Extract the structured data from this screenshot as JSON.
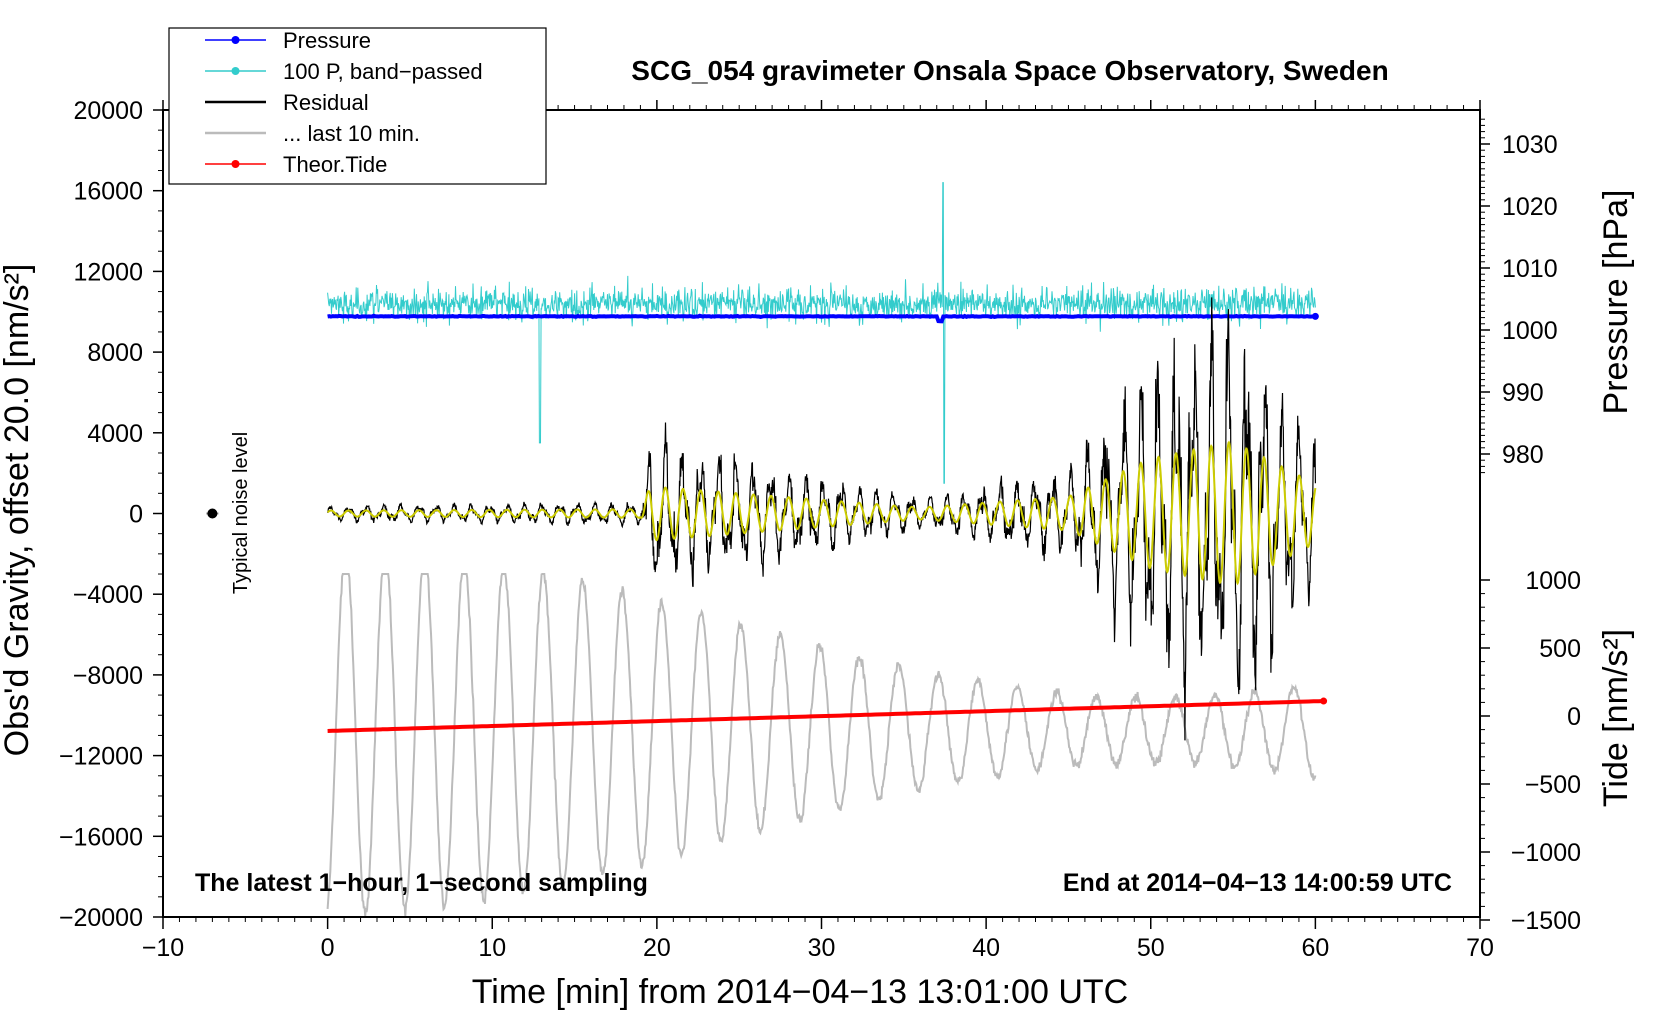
{
  "chart_data": {
    "type": "line",
    "title": "SCG_054 gravimeter Onsala Space Observatory, Sweden",
    "xlabel": "Time [min] from 2014−04−13 13:01:00 UTC",
    "ylabel_left": "Obs'd Gravity, offset 20.0 [nm/s²]",
    "ylabel_right_top": "Pressure [hPa]",
    "ylabel_right_bottom": "Tide [nm/s²]",
    "xlim": [
      -10,
      70
    ],
    "ylim_left": [
      -20000,
      20000
    ],
    "x_ticks": [
      -10,
      0,
      10,
      20,
      30,
      40,
      50,
      60,
      70
    ],
    "x_tick_labels": [
      "−10",
      "0",
      "10",
      "20",
      "30",
      "40",
      "50",
      "60",
      "70"
    ],
    "y_left_ticks": [
      20000,
      16000,
      12000,
      8000,
      4000,
      0,
      -4000,
      -8000,
      -12000,
      -16000,
      -20000
    ],
    "y_left_tick_labels": [
      "20000",
      "16000",
      "12000",
      "8000",
      "4000",
      "0",
      "−4000",
      "−8000",
      "−12000",
      "−16000",
      "−20000"
    ],
    "pressure_axis": {
      "ticks": [
        1030,
        1020,
        1010,
        1000,
        990,
        980
      ],
      "tick_labels": [
        "1030",
        "1020",
        "1010",
        "1000",
        "990",
        "980"
      ]
    },
    "tide_axis": {
      "ticks": [
        1000,
        500,
        0,
        -500,
        -1000,
        -1500
      ],
      "tick_labels": [
        "1000",
        "500",
        "0",
        "−500",
        "−1000",
        "−1500"
      ]
    },
    "legend": [
      {
        "label": "Pressure",
        "color": "#0000ff",
        "marker": true
      },
      {
        "label": "100 P, band−passed",
        "color": "#33cccc",
        "marker": true
      },
      {
        "label": "Residual",
        "color": "#000000",
        "marker": false
      },
      {
        "label": "... last 10 min.",
        "color": "#bbbbbb",
        "marker": false
      },
      {
        "label": "Theor.Tide",
        "color": "#ff0000",
        "marker": true
      }
    ],
    "annotations": {
      "noise": "Typical noise level",
      "footer_left": "The latest 1−hour, 1−second sampling",
      "footer_right": "End at 2014−04−13 14:00:59 UTC"
    },
    "series": [
      {
        "name": "Pressure",
        "color": "#0000ff",
        "unit": "hPa",
        "x_range": [
          0,
          60
        ],
        "approx_value": 1002.2
      },
      {
        "name": "100 P, band−passed",
        "color": "#33cccc",
        "x_range": [
          0,
          60
        ],
        "baseline": 10400,
        "typical_amplitude": 900,
        "spikes": [
          {
            "x": 12.9,
            "min": 3500
          },
          {
            "x": 37.4,
            "max": 16400,
            "min": 1500
          }
        ]
      },
      {
        "name": "Residual",
        "color": "#000000",
        "x_range": [
          0,
          60
        ],
        "baseline": 0,
        "envelope_points": [
          [
            0,
            350
          ],
          [
            19,
            500
          ],
          [
            19.6,
            3200
          ],
          [
            36,
            700
          ],
          [
            45,
            2000
          ],
          [
            50,
            6500
          ],
          [
            55,
            8500
          ],
          [
            60,
            3500
          ]
        ]
      },
      {
        "name": "Residual (filtered)",
        "color": "#cccc00",
        "x_range": [
          0,
          60
        ],
        "baseline": 0
      },
      {
        "name": "... last 10 min.",
        "color": "#bbbbbb",
        "x_range": [
          0,
          60
        ],
        "oscillation_range": [
          -20000,
          -3500
        ],
        "cycles": 25
      },
      {
        "name": "Theor.Tide",
        "color": "#ff0000",
        "unit": "nm/s²",
        "x": [
          0,
          60.5
        ],
        "y": [
          -110,
          110
        ]
      },
      {
        "name": "Typical noise level",
        "color": "#000000",
        "x": -7.0,
        "y": 0
      }
    ]
  }
}
